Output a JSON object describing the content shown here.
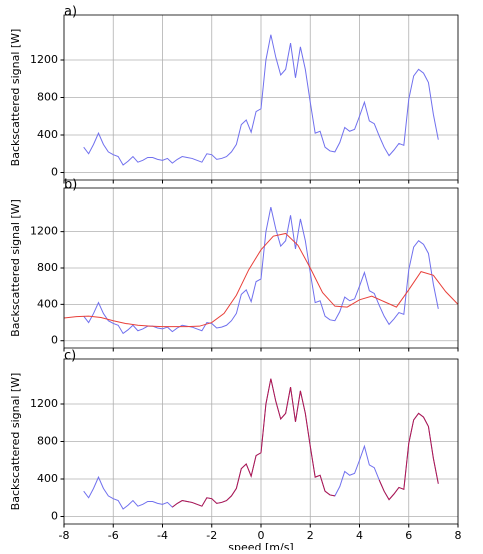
{
  "chart_data": [
    {
      "type": "line",
      "label": "a)",
      "ylabel": "Backscattered signal [W]",
      "xlim": [
        -8,
        8
      ],
      "xticks": [
        -8,
        -6,
        -4,
        -2,
        0,
        2,
        4,
        6,
        8
      ],
      "ylim": [
        -80,
        1680
      ],
      "yticks": [
        0,
        400,
        800,
        1200
      ],
      "grid": true,
      "series": [
        {
          "color": "#7070ee",
          "x": [
            -7.2,
            -7.0,
            -6.8,
            -6.6,
            -6.4,
            -6.2,
            -6.0,
            -5.8,
            -5.6,
            -5.4,
            -5.2,
            -5.0,
            -4.8,
            -4.6,
            -4.4,
            -4.2,
            -4.0,
            -3.8,
            -3.6,
            -3.4,
            -3.2,
            -3.0,
            -2.8,
            -2.6,
            -2.4,
            -2.2,
            -2.0,
            -1.8,
            -1.6,
            -1.4,
            -1.2,
            -1.0,
            -0.8,
            -0.6,
            -0.4,
            -0.2,
            0.0,
            0.2,
            0.4,
            0.6,
            0.8,
            1.0,
            1.2,
            1.4,
            1.6,
            1.8,
            2.0,
            2.2,
            2.4,
            2.6,
            2.8,
            3.0,
            3.2,
            3.4,
            3.6,
            3.8,
            4.0,
            4.2,
            4.4,
            4.6,
            4.8,
            5.0,
            5.2,
            5.4,
            5.6,
            5.8,
            6.0,
            6.2,
            6.4,
            6.6,
            6.8,
            7.0,
            7.2
          ],
          "values": [
            270,
            200,
            300,
            420,
            300,
            220,
            190,
            170,
            80,
            120,
            170,
            110,
            130,
            160,
            160,
            140,
            130,
            150,
            100,
            140,
            170,
            160,
            150,
            130,
            110,
            200,
            190,
            140,
            150,
            170,
            220,
            300,
            510,
            560,
            430,
            650,
            680,
            1200,
            1470,
            1230,
            1040,
            1100,
            1380,
            1010,
            1340,
            1100,
            750,
            420,
            440,
            270,
            230,
            220,
            320,
            480,
            440,
            460,
            600,
            750,
            550,
            520,
            390,
            270,
            180,
            240,
            310,
            290,
            780,
            1030,
            1100,
            1060,
            960,
            620,
            350
          ]
        }
      ]
    },
    {
      "type": "line",
      "label": "b)",
      "ylabel": "Backscattered signal [W]",
      "xlim": [
        -8,
        8
      ],
      "xticks": [
        -8,
        -6,
        -4,
        -2,
        0,
        2,
        4,
        6,
        8
      ],
      "ylim": [
        -80,
        1680
      ],
      "yticks": [
        0,
        400,
        800,
        1200
      ],
      "grid": true,
      "series": [
        {
          "color": "#7070ee",
          "x": [
            -7.2,
            -7.0,
            -6.8,
            -6.6,
            -6.4,
            -6.2,
            -6.0,
            -5.8,
            -5.6,
            -5.4,
            -5.2,
            -5.0,
            -4.8,
            -4.6,
            -4.4,
            -4.2,
            -4.0,
            -3.8,
            -3.6,
            -3.4,
            -3.2,
            -3.0,
            -2.8,
            -2.6,
            -2.4,
            -2.2,
            -2.0,
            -1.8,
            -1.6,
            -1.4,
            -1.2,
            -1.0,
            -0.8,
            -0.6,
            -0.4,
            -0.2,
            0.0,
            0.2,
            0.4,
            0.6,
            0.8,
            1.0,
            1.2,
            1.4,
            1.6,
            1.8,
            2.0,
            2.2,
            2.4,
            2.6,
            2.8,
            3.0,
            3.2,
            3.4,
            3.6,
            3.8,
            4.0,
            4.2,
            4.4,
            4.6,
            4.8,
            5.0,
            5.2,
            5.4,
            5.6,
            5.8,
            6.0,
            6.2,
            6.4,
            6.6,
            6.8,
            7.0,
            7.2
          ],
          "values": [
            270,
            200,
            300,
            420,
            300,
            220,
            190,
            170,
            80,
            120,
            170,
            110,
            130,
            160,
            160,
            140,
            130,
            150,
            100,
            140,
            170,
            160,
            150,
            130,
            110,
            200,
            190,
            140,
            150,
            170,
            220,
            300,
            510,
            560,
            430,
            650,
            680,
            1200,
            1470,
            1230,
            1040,
            1100,
            1380,
            1010,
            1340,
            1100,
            750,
            420,
            440,
            270,
            230,
            220,
            320,
            480,
            440,
            460,
            600,
            750,
            550,
            520,
            390,
            270,
            180,
            240,
            310,
            290,
            780,
            1030,
            1100,
            1060,
            960,
            620,
            350
          ]
        },
        {
          "color": "#e8403a",
          "x": [
            -8,
            -7.5,
            -7,
            -6.5,
            -6,
            -5.5,
            -5,
            -4.5,
            -4,
            -3.5,
            -3,
            -2.5,
            -2,
            -1.5,
            -1,
            -0.5,
            0,
            0.5,
            1,
            1.5,
            2,
            2.5,
            3,
            3.5,
            4,
            4.5,
            5,
            5.5,
            6,
            6.5,
            7,
            7.5,
            8
          ],
          "values": [
            250,
            265,
            270,
            255,
            220,
            190,
            170,
            160,
            155,
            155,
            155,
            160,
            200,
            300,
            500,
            780,
            1000,
            1150,
            1180,
            1050,
            800,
            530,
            380,
            370,
            450,
            490,
            430,
            370,
            560,
            760,
            720,
            540,
            400
          ]
        }
      ]
    },
    {
      "type": "line",
      "label": "c)",
      "ylabel": "Backscattered signal [W]",
      "xlabel": "speed [m/s]",
      "xlim": [
        -8,
        8
      ],
      "xticks": [
        -8,
        -6,
        -4,
        -2,
        0,
        2,
        4,
        6,
        8
      ],
      "ylim": [
        -80,
        1680
      ],
      "yticks": [
        0,
        400,
        800,
        1200
      ],
      "grid": true,
      "series": [
        {
          "color": "#7070ee",
          "x": [
            -7.2,
            -7.0,
            -6.8,
            -6.6,
            -6.4,
            -6.2,
            -6.0,
            -5.8,
            -5.6,
            -5.4,
            -5.2,
            -5.0,
            -4.8,
            -4.6,
            -4.4,
            -4.2,
            -4.0,
            -3.8,
            -3.6,
            -3.4,
            -3.2,
            -3.0,
            -2.8,
            -2.6,
            -2.4,
            -2.2,
            -2.0,
            -1.8,
            -1.6,
            -1.4,
            -1.2,
            -1.0,
            -0.8,
            -0.6,
            -0.4,
            -0.2,
            0.0,
            0.2,
            0.4,
            0.6,
            0.8,
            1.0,
            1.2,
            1.4,
            1.6,
            1.8,
            2.0,
            2.2,
            2.4,
            2.6,
            2.8,
            3.0,
            3.2,
            3.4,
            3.6,
            3.8,
            4.0,
            4.2,
            4.4,
            4.6,
            4.8,
            5.0,
            5.2,
            5.4,
            5.6,
            5.8,
            6.0,
            6.2,
            6.4,
            6.6,
            6.8,
            7.0,
            7.2
          ],
          "values": [
            270,
            200,
            300,
            420,
            300,
            220,
            190,
            170,
            80,
            120,
            170,
            110,
            130,
            160,
            160,
            140,
            130,
            150,
            100,
            140,
            170,
            160,
            150,
            130,
            110,
            200,
            190,
            140,
            150,
            170,
            220,
            300,
            510,
            560,
            430,
            650,
            680,
            1200,
            1470,
            1230,
            1040,
            1100,
            1380,
            1010,
            1340,
            1100,
            750,
            420,
            440,
            270,
            230,
            220,
            320,
            480,
            440,
            460,
            600,
            750,
            550,
            520,
            390,
            270,
            180,
            240,
            310,
            290,
            780,
            1030,
            1100,
            1060,
            960,
            620,
            350
          ]
        },
        {
          "color": "#b3174a",
          "x": [
            -7.2,
            -7.0,
            -6.8,
            -6.6,
            -6.4,
            -6.2,
            -6.0,
            -5.8,
            -5.6,
            -5.4,
            -5.2,
            -5.0,
            -4.8,
            -4.6,
            -4.4,
            -4.2,
            -4.0,
            -3.8,
            -3.6,
            -3.4,
            -3.2,
            -3.0,
            -2.8,
            -2.6,
            -2.4,
            -2.2,
            -2.0,
            -1.8,
            -1.6,
            -1.4,
            -1.2,
            -1.0,
            -0.8,
            -0.6,
            -0.4,
            -0.2,
            0.0,
            0.2,
            0.4,
            0.6,
            0.8,
            1.0,
            1.2,
            1.4,
            1.6,
            1.8,
            2.0,
            2.2,
            2.4,
            2.6,
            2.8,
            3.0,
            3.2,
            3.4,
            3.6,
            3.8,
            4.0,
            4.2,
            4.4,
            4.6,
            4.8,
            5.0,
            5.2,
            5.4,
            5.6,
            5.8,
            6.0,
            6.2,
            6.4,
            6.6,
            6.8,
            7.0,
            7.2
          ],
          "values": [
            null,
            null,
            null,
            null,
            null,
            null,
            null,
            null,
            null,
            null,
            null,
            null,
            null,
            null,
            null,
            null,
            null,
            null,
            100,
            140,
            170,
            160,
            150,
            130,
            110,
            200,
            190,
            140,
            150,
            170,
            220,
            300,
            510,
            560,
            430,
            650,
            680,
            1200,
            1470,
            1230,
            1040,
            1100,
            1380,
            1010,
            1340,
            1100,
            750,
            420,
            440,
            270,
            230,
            220,
            null,
            null,
            null,
            null,
            null,
            null,
            null,
            null,
            390,
            270,
            180,
            240,
            310,
            290,
            780,
            1030,
            1100,
            1060,
            960,
            620,
            350
          ]
        }
      ]
    }
  ]
}
